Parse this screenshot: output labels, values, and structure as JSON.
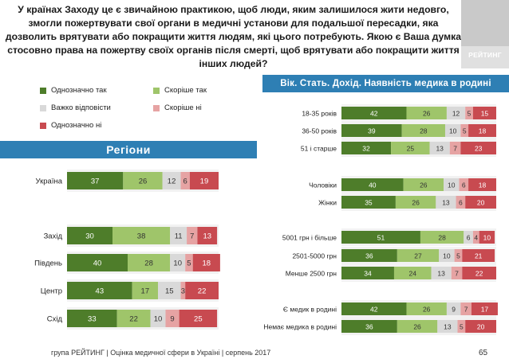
{
  "title_lines": [
    "У країнах Заходу це є звичайною практикою, щоб люди, яким залишилося жити недовго,",
    "змогли пожертвувати свої органи в медичні установи для подальшої пересадки, яка",
    "дозволить врятувати або покращити життя людям, які цього потребують. Якою є Ваша думка",
    "стосовно права на пожертву своїх органів після смерті, щоб врятувати або покращити життя",
    "інших людей?"
  ],
  "logo_text": "РЕЙТИНГ",
  "section_regions": "Регіони",
  "section_demo": "Вік. Стать. Дохід. Наявність медика в родині",
  "footer": "група РЕЙТИНГ | Оцінка медичної сфери в Україні | серпень 2017",
  "page_number": "65",
  "colors": {
    "header_bg": "#2e7fb4",
    "definitely_yes": "#4e7d2a",
    "rather_yes": "#9fc56a",
    "hard_to_say": "#d9d9d9",
    "rather_no": "#e6a3a3",
    "definitely_no": "#c84a50"
  },
  "chart_data": [
    {
      "type": "bar",
      "orientation": "horizontal-stacked",
      "title": "Регіони",
      "categories": [
        "Україна",
        "Захід",
        "Південь",
        "Центр",
        "Схід"
      ],
      "series": [
        {
          "name": "Однозначно так",
          "values": [
            37,
            30,
            40,
            43,
            33
          ]
        },
        {
          "name": "Скоріше так",
          "values": [
            26,
            38,
            28,
            17,
            22
          ]
        },
        {
          "name": "Важко відповісти",
          "values": [
            12,
            11,
            10,
            15,
            10
          ]
        },
        {
          "name": "Скоріше ні",
          "values": [
            6,
            7,
            5,
            3,
            9
          ]
        },
        {
          "name": "Однозначно ні",
          "values": [
            19,
            13,
            18,
            22,
            25
          ]
        }
      ],
      "xlim": [
        0,
        100
      ],
      "legend": "top-left"
    },
    {
      "type": "bar",
      "orientation": "horizontal-stacked",
      "title": "Вік. Стать. Дохід. Наявність медика в родині",
      "categories": [
        "18-35 років",
        "36-50 років",
        "51 і старше",
        "Чоловіки",
        "Жінки",
        "5001 грн і більше",
        "2501-5000 грн",
        "Менше 2500 грн",
        "Є медик в родині",
        "Немає медика в родині"
      ],
      "series": [
        {
          "name": "Однозначно так",
          "values": [
            42,
            39,
            32,
            40,
            35,
            51,
            36,
            34,
            42,
            36
          ]
        },
        {
          "name": "Скоріше так",
          "values": [
            26,
            28,
            25,
            26,
            26,
            28,
            27,
            24,
            26,
            26
          ]
        },
        {
          "name": "Важко відповісти",
          "values": [
            12,
            10,
            13,
            10,
            13,
            6,
            10,
            13,
            9,
            13
          ]
        },
        {
          "name": "Скоріше ні",
          "values": [
            5,
            5,
            7,
            6,
            6,
            4,
            5,
            7,
            7,
            5
          ]
        },
        {
          "name": "Однозначно ні",
          "values": [
            15,
            18,
            23,
            18,
            20,
            10,
            21,
            22,
            17,
            20
          ]
        }
      ],
      "xlim": [
        0,
        100
      ]
    }
  ]
}
